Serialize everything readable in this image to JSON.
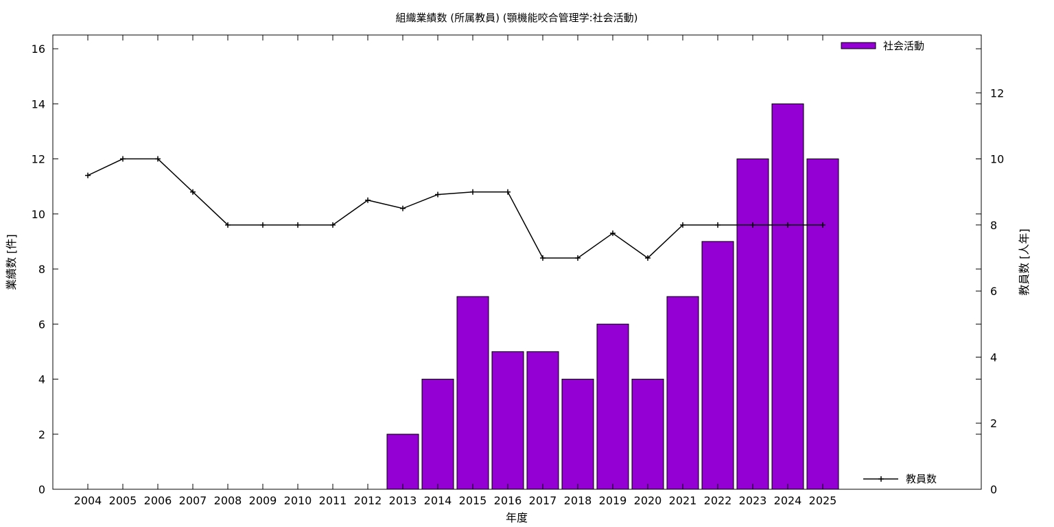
{
  "chart_data": {
    "type": "bar",
    "title": "組織業績数 (所属教員) (顎機能咬合管理学:社会活動)",
    "xlabel": "年度",
    "ylabel": "業績数 [件]",
    "y2label": "教員数 [人年]",
    "categories": [
      "2004",
      "2005",
      "2006",
      "2007",
      "2008",
      "2009",
      "2010",
      "2011",
      "2012",
      "2013",
      "2014",
      "2015",
      "2016",
      "2017",
      "2018",
      "2019",
      "2020",
      "2021",
      "2022",
      "2023",
      "2024",
      "2025"
    ],
    "ylim": [
      0,
      16.5
    ],
    "y2lim": [
      0,
      13.75
    ],
    "yticks": [
      0,
      2,
      4,
      6,
      8,
      10,
      12,
      14,
      16
    ],
    "y2ticks": [
      0,
      2,
      4,
      6,
      8,
      10,
      12
    ],
    "grid": false,
    "series": [
      {
        "name": "社会活動",
        "type": "bar",
        "axis": "left",
        "color": "#9400d3",
        "values": [
          0,
          0,
          0,
          0,
          0,
          0,
          0,
          0,
          0,
          2,
          4,
          7,
          5,
          5,
          4,
          6,
          4,
          7,
          9,
          12,
          14,
          12
        ]
      },
      {
        "name": "教員数",
        "type": "line",
        "axis": "right",
        "color": "#000000",
        "values": [
          9.5,
          10,
          10,
          9,
          8,
          8,
          8,
          8,
          8.75,
          8.5,
          8.92,
          9,
          9,
          7,
          7,
          7.75,
          7,
          8,
          8,
          8,
          8,
          8
        ]
      }
    ],
    "legend": {
      "bar_position": "top-right",
      "line_position": "bottom-right"
    }
  }
}
